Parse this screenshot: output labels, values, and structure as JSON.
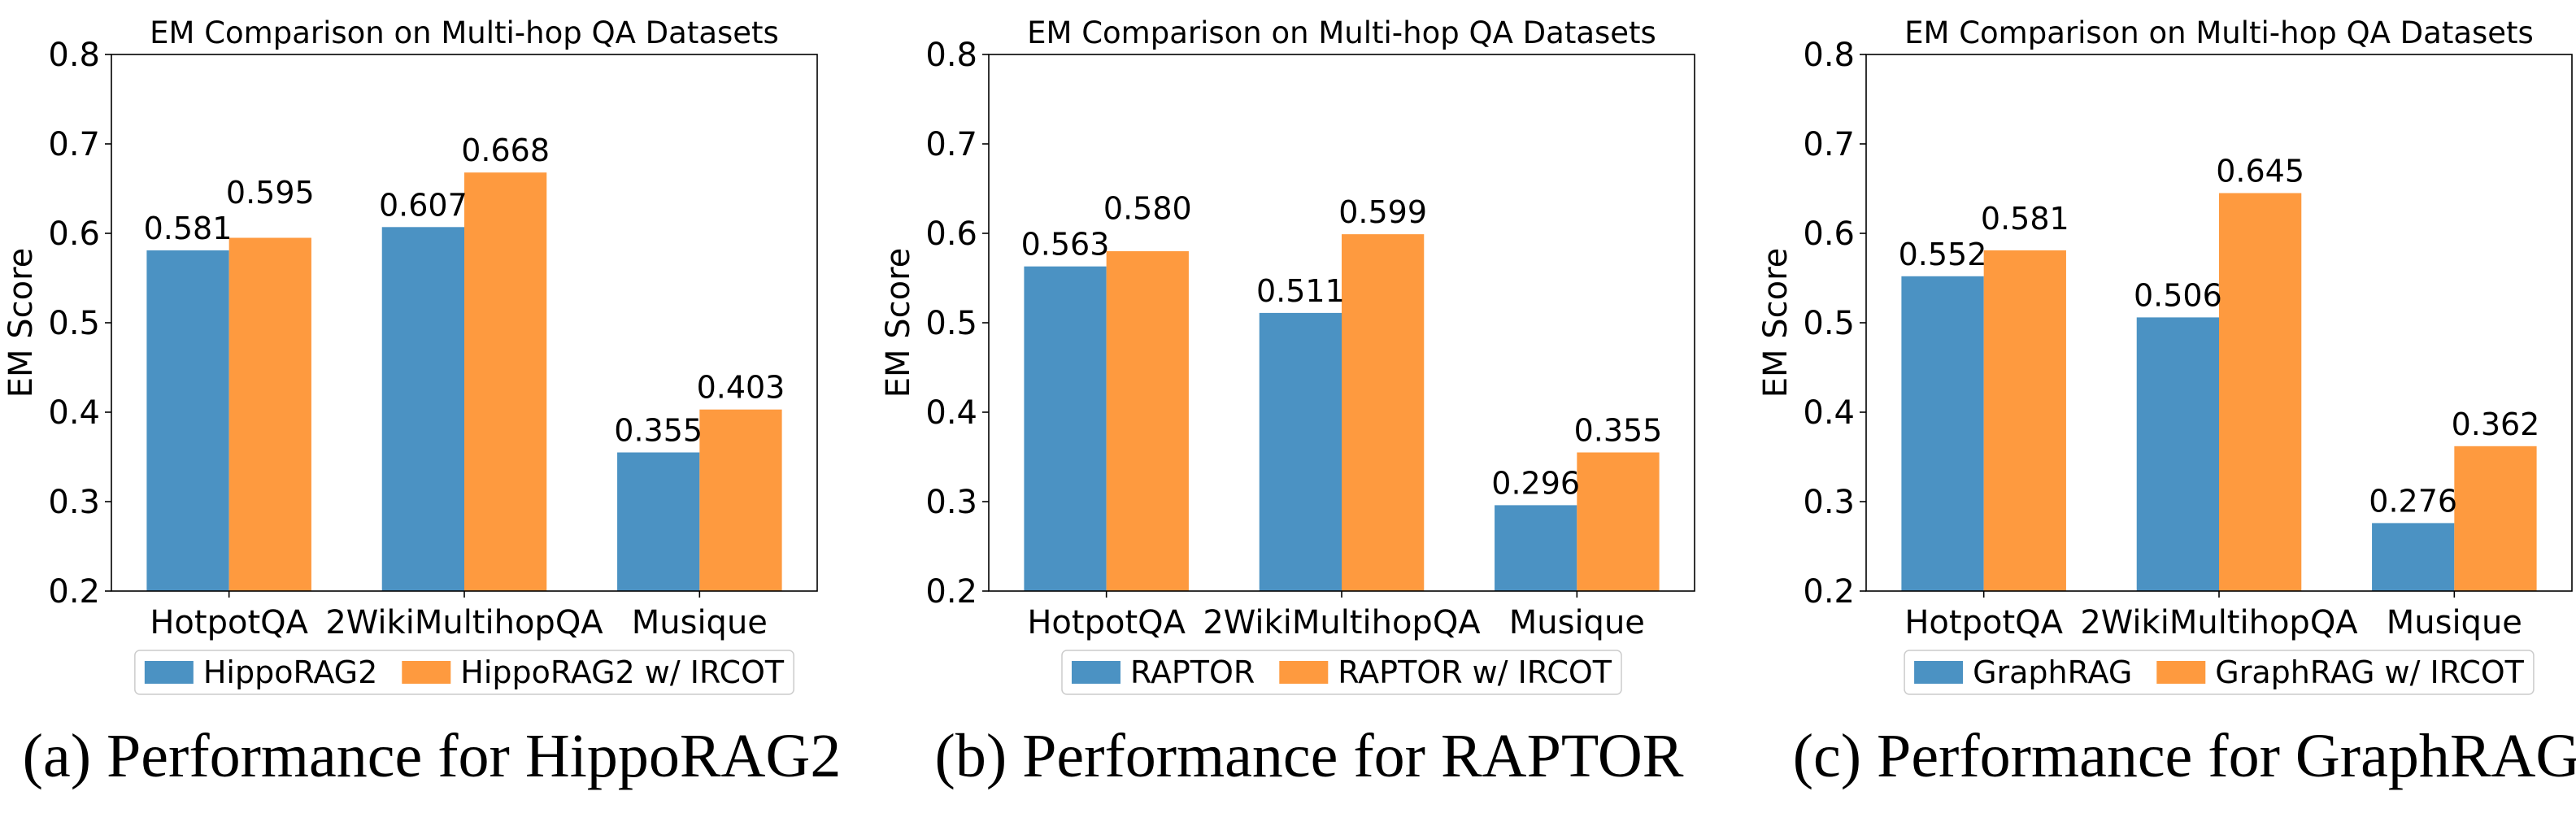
{
  "colors": {
    "base": "#4b92c3",
    "ircot": "#fe9a3f"
  },
  "chart_data": [
    {
      "type": "bar",
      "title": "EM Comparison on Multi-hop QA Datasets",
      "caption": "(a) Performance for HippoRAG2",
      "xlabel": "",
      "ylabel": "EM Score",
      "ylim": [
        0.2,
        0.8
      ],
      "yticks": [
        "0.2",
        "0.3",
        "0.4",
        "0.5",
        "0.6",
        "0.7",
        "0.8"
      ],
      "categories": [
        "HotpotQA",
        "2WikiMultihopQA",
        "Musique"
      ],
      "legend_position": "top-right",
      "series": [
        {
          "name": "HippoRAG2",
          "values": [
            0.581,
            0.607,
            0.355
          ],
          "labels": [
            "0.581",
            "0.607",
            "0.355"
          ]
        },
        {
          "name": "HippoRAG2 w/ IRCOT",
          "values": [
            0.595,
            0.668,
            0.403
          ],
          "labels": [
            "0.595",
            "0.668",
            "0.403"
          ]
        }
      ]
    },
    {
      "type": "bar",
      "title": "EM Comparison on Multi-hop QA Datasets",
      "caption": "(b) Performance for RAPTOR",
      "xlabel": "",
      "ylabel": "EM Score",
      "ylim": [
        0.2,
        0.8
      ],
      "yticks": [
        "0.2",
        "0.3",
        "0.4",
        "0.5",
        "0.6",
        "0.7",
        "0.8"
      ],
      "categories": [
        "HotpotQA",
        "2WikiMultihopQA",
        "Musique"
      ],
      "legend_position": "top-right",
      "series": [
        {
          "name": "RAPTOR",
          "values": [
            0.563,
            0.511,
            0.296
          ],
          "labels": [
            "0.563",
            "0.511",
            "0.296"
          ]
        },
        {
          "name": "RAPTOR w/ IRCOT",
          "values": [
            0.58,
            0.599,
            0.355
          ],
          "labels": [
            "0.580",
            "0.599",
            "0.355"
          ]
        }
      ]
    },
    {
      "type": "bar",
      "title": "EM Comparison on Multi-hop QA Datasets",
      "caption": "(c) Performance for GraphRAG",
      "xlabel": "",
      "ylabel": "EM Score",
      "ylim": [
        0.2,
        0.8
      ],
      "yticks": [
        "0.2",
        "0.3",
        "0.4",
        "0.5",
        "0.6",
        "0.7",
        "0.8"
      ],
      "categories": [
        "HotpotQA",
        "2WikiMultihopQA",
        "Musique"
      ],
      "legend_position": "top-right",
      "series": [
        {
          "name": "GraphRAG",
          "values": [
            0.552,
            0.506,
            0.276
          ],
          "labels": [
            "0.552",
            "0.506",
            "0.276"
          ]
        },
        {
          "name": "GraphRAG w/ IRCOT",
          "values": [
            0.581,
            0.645,
            0.362
          ],
          "labels": [
            "0.581",
            "0.645",
            "0.362"
          ]
        }
      ]
    }
  ]
}
